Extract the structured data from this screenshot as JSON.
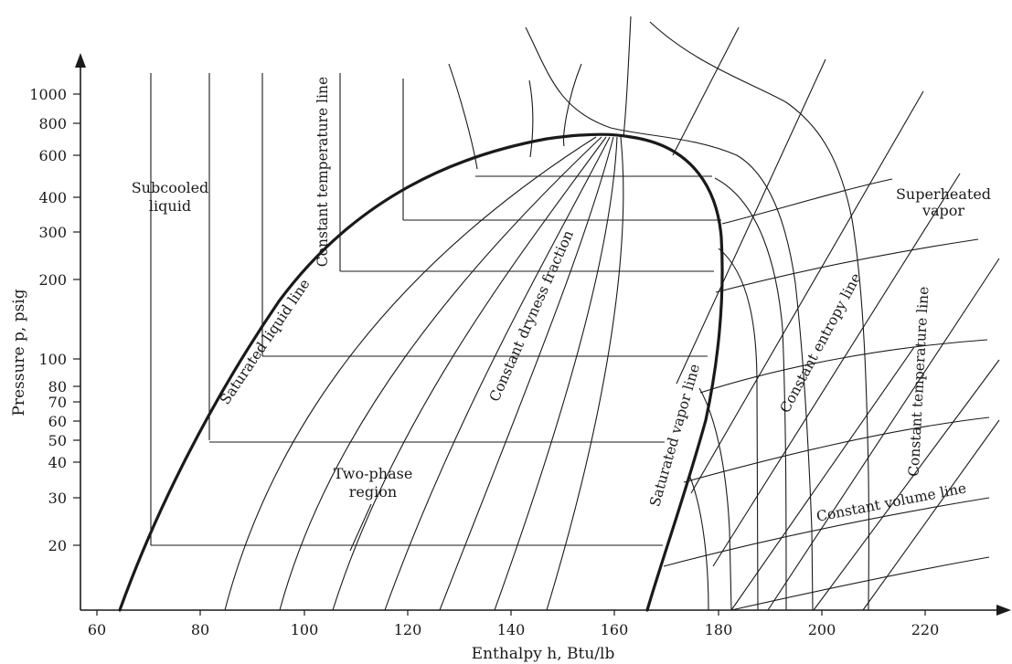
{
  "axes": {
    "x_title": "Enthalpy h, Btu/lb",
    "y_title": "Pressure p, psig",
    "x_ticks": [
      "60",
      "80",
      "100",
      "120",
      "140",
      "160",
      "180",
      "200",
      "220"
    ],
    "y_ticks": [
      "1000",
      "800",
      "600",
      "400",
      "300",
      "200",
      "100",
      "80",
      "70",
      "60",
      "50",
      "40",
      "30",
      "20"
    ]
  },
  "labels": {
    "subcooled_line1": "Subcooled",
    "subcooled_line2": "liquid",
    "superheated_line1": "Superheated",
    "superheated_line2": "vapor",
    "two_phase_line1": "Two-phase",
    "two_phase_line2": "region",
    "constant_temperature_left": "Constant temperature line",
    "saturated_liquid": "Saturated liquid line",
    "constant_dryness": "Constant dryness fraction",
    "saturated_vapor": "Saturated vapor line",
    "constant_entropy": "Constant entropy line",
    "constant_temperature_right": "Constant temperature line",
    "constant_volume": "Constant volume line"
  }
}
